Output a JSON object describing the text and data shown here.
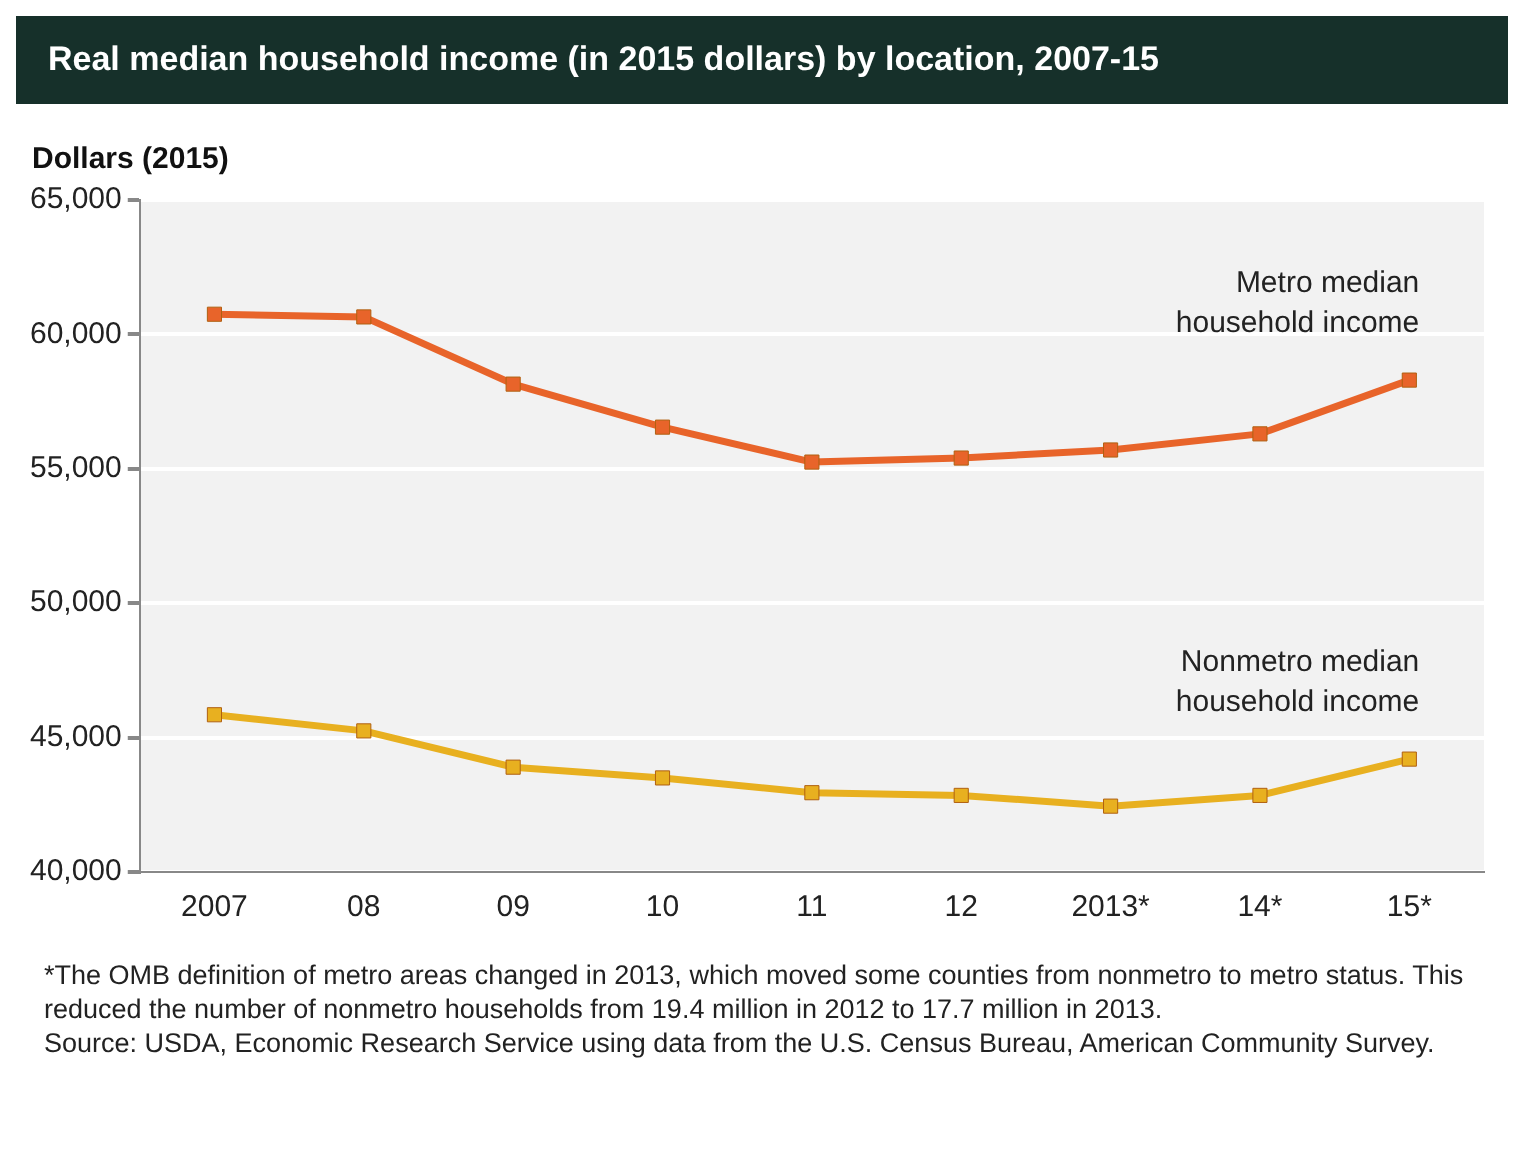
{
  "chart_data": {
    "type": "line",
    "title": "Real median household income (in 2015 dollars) by location, 2007-15",
    "ylabel": "Dollars (2015)",
    "categories": [
      "2007",
      "08",
      "09",
      "10",
      "11",
      "12",
      "2013*",
      "14*",
      "15*"
    ],
    "series": [
      {
        "name": "Metro median household income",
        "color": "#e8642a",
        "values": [
          60750,
          60650,
          58150,
          56550,
          55250,
          55400,
          55700,
          56300,
          58300
        ]
      },
      {
        "name": "Nonmetro median household income",
        "color": "#e8b020",
        "values": [
          45850,
          45250,
          43900,
          43500,
          42950,
          42850,
          42450,
          42850,
          44200
        ]
      }
    ],
    "ylim": [
      40000,
      65000
    ],
    "yticks": [
      {
        "value": 40000,
        "label": "40,000"
      },
      {
        "value": 45000,
        "label": "45,000"
      },
      {
        "value": 50000,
        "label": "50,000"
      },
      {
        "value": 55000,
        "label": "55,000"
      },
      {
        "value": 60000,
        "label": "60,000"
      },
      {
        "value": 65000,
        "label": "65,000"
      }
    ],
    "grid": "y",
    "legend": false,
    "marker": "square",
    "line_style": "solid",
    "annotations": [
      "*The OMB definition of metro areas changed in 2013, which moved some counties from nonmetro to metro status. This reduced the number of nonmetro households from 19.4 million in 2012 to 17.7 million in 2013.",
      "Source: USDA, Economic Research Service using data from the U.S. Census Bureau, American Community Survey."
    ]
  }
}
